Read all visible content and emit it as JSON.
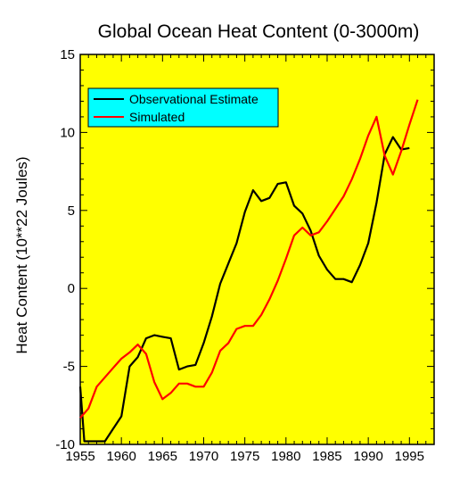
{
  "chart_data": {
    "type": "line",
    "title": "Global Ocean Heat Content (0-3000m)",
    "xlabel": "",
    "ylabel": "Heat Content (10**22 Joules)",
    "xlim": [
      1955,
      1998
    ],
    "ylim": [
      -10,
      15
    ],
    "xticks": [
      1955,
      1960,
      1965,
      1970,
      1975,
      1980,
      1985,
      1990,
      1995
    ],
    "xtick_labels": [
      "1955",
      "1960",
      "1965",
      "1970",
      "1975",
      "1980",
      "1985",
      "1990",
      "1995"
    ],
    "yticks": [
      -10,
      -5,
      0,
      5,
      10,
      15
    ],
    "ytick_labels": [
      "-10",
      "-5",
      "0",
      "5",
      "10",
      "15"
    ],
    "grid": false,
    "legend_position": "top-left",
    "background_color": "#ffff00",
    "legend_box_color": "#00ffff",
    "series": [
      {
        "name": "Observational Estimate",
        "color": "#000000",
        "x": [
          1955,
          1955.5,
          1957,
          1958,
          1959,
          1960,
          1961,
          1962,
          1963,
          1964,
          1965,
          1966,
          1967,
          1968,
          1969,
          1970,
          1971,
          1972,
          1973,
          1974,
          1975,
          1976,
          1977,
          1978,
          1979,
          1980,
          1981,
          1982,
          1983,
          1984,
          1985,
          1986,
          1987,
          1988,
          1989,
          1990,
          1991,
          1992,
          1993,
          1994,
          1995
        ],
        "y": [
          -6.3,
          -9.8,
          -9.8,
          -9.8,
          -9.0,
          -8.2,
          -5.0,
          -4.4,
          -3.2,
          -3.0,
          -3.1,
          -3.2,
          -5.2,
          -5.0,
          -4.9,
          -3.5,
          -1.8,
          0.3,
          1.6,
          2.9,
          4.9,
          6.3,
          5.6,
          5.8,
          6.7,
          6.8,
          5.3,
          4.8,
          3.7,
          2.1,
          1.2,
          0.6,
          0.6,
          0.4,
          1.5,
          2.9,
          5.5,
          8.6,
          9.7,
          8.9,
          9.0
        ]
      },
      {
        "name": "Simulated",
        "color": "#ff0000",
        "x": [
          1955,
          1956,
          1957,
          1958,
          1959,
          1960,
          1961,
          1962,
          1963,
          1964,
          1965,
          1966,
          1967,
          1968,
          1969,
          1970,
          1971,
          1972,
          1973,
          1974,
          1975,
          1976,
          1977,
          1978,
          1979,
          1980,
          1981,
          1982,
          1983,
          1984,
          1985,
          1986,
          1987,
          1988,
          1989,
          1990,
          1991,
          1992,
          1993,
          1994,
          1995,
          1996
        ],
        "y": [
          -8.3,
          -7.7,
          -6.3,
          -5.7,
          -5.1,
          -4.5,
          -4.1,
          -3.6,
          -4.2,
          -6.0,
          -7.1,
          -6.7,
          -6.1,
          -6.1,
          -6.3,
          -6.3,
          -5.4,
          -4.0,
          -3.5,
          -2.6,
          -2.4,
          -2.4,
          -1.7,
          -0.7,
          0.5,
          1.9,
          3.4,
          3.9,
          3.4,
          3.6,
          4.3,
          5.1,
          5.9,
          7.0,
          8.3,
          9.8,
          11.0,
          8.5,
          7.3,
          8.8,
          10.5,
          12.1
        ]
      }
    ]
  }
}
